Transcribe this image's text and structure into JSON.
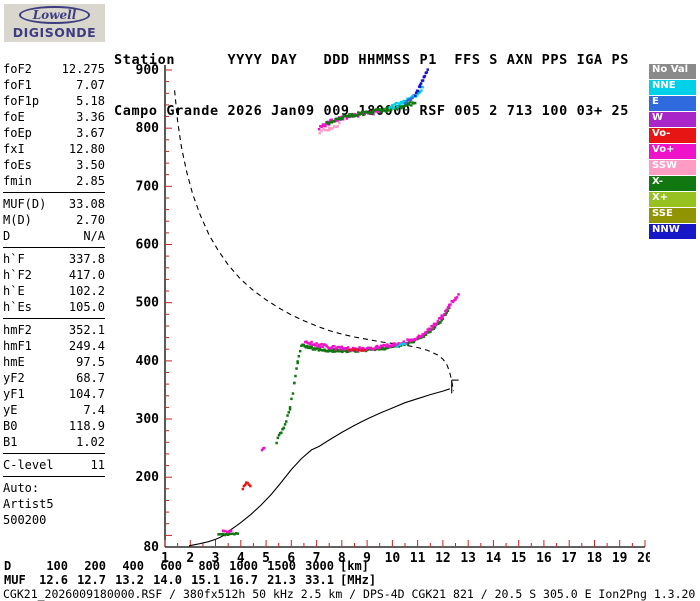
{
  "logo": {
    "top": "Lowell",
    "bottom": "DIGISONDE"
  },
  "header": {
    "line1": "Station      YYYY DAY   DDD HHMMSS P1  FFS S AXN PPS IGA PS",
    "line2": "Campo Grande 2026 Jan09 009 180000 RSF 005 2 713 100 03+ 25"
  },
  "params": [
    {
      "l": "foF2",
      "v": "12.275"
    },
    {
      "l": "foF1",
      "v": "7.07"
    },
    {
      "l": "foF1p",
      "v": "5.18"
    },
    {
      "l": "foE",
      "v": "3.36"
    },
    {
      "l": "foEp",
      "v": "3.67"
    },
    {
      "l": "fxI",
      "v": "12.80"
    },
    {
      "l": "foEs",
      "v": "3.50"
    },
    {
      "l": "fmin",
      "v": "2.85",
      "sep": true
    },
    {
      "l": "MUF(D)",
      "v": "33.08"
    },
    {
      "l": "M(D)",
      "v": "2.70"
    },
    {
      "l": "D",
      "v": "N/A",
      "sep": true
    },
    {
      "l": "h`F",
      "v": "337.8"
    },
    {
      "l": "h`F2",
      "v": "417.0"
    },
    {
      "l": "h`E",
      "v": "102.2"
    },
    {
      "l": "h`Es",
      "v": "105.0",
      "sep": true
    },
    {
      "l": "hmF2",
      "v": "352.1"
    },
    {
      "l": "hmF1",
      "v": "249.4"
    },
    {
      "l": "hmE",
      "v": "97.5"
    },
    {
      "l": "yF2",
      "v": "68.7"
    },
    {
      "l": "yF1",
      "v": "104.7"
    },
    {
      "l": "yE",
      "v": "7.4"
    },
    {
      "l": "B0",
      "v": "118.9"
    },
    {
      "l": "B1",
      "v": "1.02",
      "sep": true
    },
    {
      "l": "C-level",
      "v": "11",
      "sep": true
    },
    {
      "l": "Auto:",
      "v": ""
    },
    {
      "l": "Artist5",
      "v": ""
    },
    {
      "l": "500200",
      "v": ""
    }
  ],
  "legend": [
    {
      "label": "No Val",
      "color": "#8a8a8a"
    },
    {
      "label": "NNE",
      "color": "#00d0e8"
    },
    {
      "label": "E",
      "color": "#2f6bde"
    },
    {
      "label": "W",
      "color": "#a825c8"
    },
    {
      "label": "Vo-",
      "color": "#e81515"
    },
    {
      "label": "Vo+",
      "color": "#ee12c8"
    },
    {
      "label": "SSW",
      "color": "#ff9cc4"
    },
    {
      "label": "X-",
      "color": "#117711"
    },
    {
      "label": "X+",
      "color": "#97c11f"
    },
    {
      "label": "SSE",
      "color": "#8f9400"
    },
    {
      "label": "NNW",
      "color": "#1717c8"
    }
  ],
  "muf_table": {
    "rows": [
      {
        "label": "D",
        "values": [
          "100",
          "200",
          "400",
          "600",
          "800",
          "1000",
          "1500",
          "3000"
        ],
        "unit": "[km]"
      },
      {
        "label": "MUF",
        "values": [
          "12.6",
          "12.7",
          "13.2",
          "14.0",
          "15.1",
          "16.7",
          "21.3",
          "33.1"
        ],
        "unit": "[MHz]"
      }
    ]
  },
  "status_line": "CGK21_2026009180000.RSF / 380fx512h 50 kHz 2.5 km / DPS-4D CGK21 821 / 20.5 S 305.0 E Ion2Png 1.3.20",
  "chart_data": {
    "type": "scatter",
    "title": "Digisonde ionogram, Campo Grande, 2026 Jan09 009 180000",
    "x_axis": {
      "min": 1,
      "max": 20,
      "ticks": [
        1,
        2,
        3,
        4,
        5,
        6,
        7,
        8,
        9,
        10,
        11,
        12,
        13,
        14,
        15,
        16,
        17,
        18,
        19,
        20
      ]
    },
    "y_axis": {
      "min": 80,
      "max": 900,
      "tick_labels": [
        900,
        800,
        700,
        600,
        500,
        400,
        300,
        200,
        80
      ]
    },
    "tick_color": "#cc2222",
    "palette": {
      "xm": "#117711",
      "xp": "#97c11f",
      "vop": "#ee12c8",
      "vom": "#e81515",
      "ssw": "#ff9cc4",
      "nne": "#00d0e8",
      "nnw": "#1717c8",
      "e": "#2f6bde",
      "w": "#a825c8",
      "noval": "#8a8a8a"
    },
    "curves": [
      {
        "name": "muf-transmission-curve",
        "style": "dashed",
        "points": [
          [
            1.38,
            865
          ],
          [
            1.5,
            812
          ],
          [
            1.65,
            768
          ],
          [
            1.85,
            726
          ],
          [
            2.1,
            686
          ],
          [
            2.4,
            650
          ],
          [
            2.75,
            616
          ],
          [
            3.1,
            590
          ],
          [
            3.5,
            565
          ],
          [
            4.0,
            540
          ],
          [
            4.5,
            521
          ],
          [
            5.0,
            505
          ],
          [
            5.5,
            491
          ],
          [
            6.0,
            479
          ],
          [
            6.5,
            469
          ],
          [
            7.0,
            460
          ],
          [
            7.5,
            452
          ],
          [
            8.0,
            446
          ],
          [
            8.5,
            441
          ],
          [
            9.0,
            437
          ],
          [
            9.5,
            433
          ],
          [
            10.0,
            430
          ],
          [
            10.5,
            427
          ],
          [
            11.0,
            423
          ],
          [
            11.4,
            418
          ],
          [
            11.8,
            410
          ],
          [
            12.0,
            403
          ],
          [
            12.15,
            394
          ],
          [
            12.25,
            383
          ],
          [
            12.33,
            370
          ],
          [
            12.38,
            358
          ],
          [
            12.42,
            348
          ]
        ]
      },
      {
        "name": "true-height-profile",
        "style": "solid",
        "points": [
          [
            1.95,
            82
          ],
          [
            2.3,
            85
          ],
          [
            2.7,
            89
          ],
          [
            3.0,
            93
          ],
          [
            3.2,
            97
          ],
          [
            3.36,
            101
          ],
          [
            3.5,
            107
          ],
          [
            3.75,
            114
          ],
          [
            4.0,
            122
          ],
          [
            4.4,
            136
          ],
          [
            4.8,
            152
          ],
          [
            5.2,
            170
          ],
          [
            5.6,
            191
          ],
          [
            6.0,
            213
          ],
          [
            6.4,
            232
          ],
          [
            6.8,
            247
          ],
          [
            7.1,
            253
          ],
          [
            7.5,
            264
          ],
          [
            8.0,
            277
          ],
          [
            8.5,
            289
          ],
          [
            9.0,
            300
          ],
          [
            9.5,
            310
          ],
          [
            10.0,
            319
          ],
          [
            10.5,
            328
          ],
          [
            11.0,
            335
          ],
          [
            11.5,
            342
          ],
          [
            12.0,
            348
          ],
          [
            12.275,
            352
          ]
        ]
      }
    ],
    "markers": [
      {
        "name": "profile-peak-marker",
        "lines": [
          [
            12.35,
            344,
            12.35,
            367
          ],
          [
            12.35,
            367,
            12.62,
            367
          ]
        ]
      }
    ],
    "traces": [
      {
        "name": "E-region-o",
        "color": "xm",
        "step": 0.06,
        "jitter": 1.2,
        "size": 2.5,
        "points": [
          [
            3.12,
            101
          ],
          [
            3.5,
            102
          ],
          [
            3.88,
            103
          ]
        ]
      },
      {
        "name": "E-region-x",
        "color": "vop",
        "step": 0.09,
        "jitter": 1.2,
        "size": 2.5,
        "points": [
          [
            3.3,
            107
          ],
          [
            3.62,
            107
          ]
        ]
      },
      {
        "name": "Es-red-cluster",
        "color": "vom",
        "step": 0.05,
        "jitter": 3.5,
        "size": 2.5,
        "points": [
          [
            4.08,
            180
          ],
          [
            4.22,
            191
          ],
          [
            4.38,
            184
          ]
        ]
      },
      {
        "name": "F-low-pink",
        "color": "vop",
        "step": 0.05,
        "jitter": 1.5,
        "size": 2.5,
        "points": [
          [
            4.84,
            247
          ],
          [
            4.93,
            250
          ]
        ]
      },
      {
        "name": "F1-ledge-green",
        "color": "xm",
        "step": 0.05,
        "jitter": 3.5,
        "size": 2.5,
        "points": [
          [
            5.42,
            262
          ],
          [
            5.7,
            283
          ],
          [
            5.95,
            318
          ],
          [
            6.12,
            360
          ],
          [
            6.25,
            398
          ],
          [
            6.35,
            418
          ]
        ]
      },
      {
        "name": "F-trace-o",
        "color": "xm",
        "step": 0.045,
        "jitter": 2.2,
        "size": 2.5,
        "points": [
          [
            6.4,
            427
          ],
          [
            6.9,
            421
          ],
          [
            7.5,
            418
          ],
          [
            8.2,
            417
          ],
          [
            9.0,
            419
          ],
          [
            9.7,
            422
          ],
          [
            10.3,
            427
          ],
          [
            10.8,
            433
          ],
          [
            11.2,
            442
          ],
          [
            11.6,
            455
          ],
          [
            11.9,
            468
          ],
          [
            12.1,
            480
          ],
          [
            12.25,
            492
          ]
        ]
      },
      {
        "name": "F-trace-x",
        "color": "vop",
        "step": 0.05,
        "jitter": 2.8,
        "size": 2.5,
        "points": [
          [
            6.55,
            433
          ],
          [
            7.1,
            427
          ],
          [
            7.8,
            422
          ],
          [
            8.6,
            420
          ],
          [
            9.4,
            423
          ],
          [
            10.1,
            428
          ],
          [
            10.7,
            435
          ],
          [
            11.2,
            445
          ],
          [
            11.6,
            459
          ],
          [
            11.95,
            475
          ],
          [
            12.25,
            495
          ],
          [
            12.5,
            507
          ],
          [
            12.62,
            514
          ]
        ]
      },
      {
        "name": "F-trace-red-bits",
        "color": "vom",
        "step": 0.12,
        "jitter": 2,
        "size": 2.5,
        "points": [
          [
            8.3,
            418
          ],
          [
            8.9,
            419
          ]
        ]
      },
      {
        "name": "hop2-x",
        "color": "vop",
        "step": 0.05,
        "jitter": 3.5,
        "size": 2.5,
        "points": [
          [
            7.1,
            800
          ],
          [
            7.35,
            806
          ],
          [
            7.6,
            812
          ],
          [
            8.0,
            818
          ],
          [
            8.5,
            822
          ],
          [
            9.0,
            825
          ],
          [
            9.5,
            828
          ]
        ]
      },
      {
        "name": "hop2-o",
        "color": "xm",
        "step": 0.05,
        "jitter": 3,
        "size": 2.5,
        "points": [
          [
            7.4,
            810
          ],
          [
            8.0,
            818
          ],
          [
            8.6,
            824
          ],
          [
            9.2,
            828
          ],
          [
            9.8,
            832
          ],
          [
            10.4,
            838
          ],
          [
            10.9,
            844
          ]
        ]
      },
      {
        "name": "hop2-ssw",
        "color": "ssw",
        "step": 0.07,
        "jitter": 3,
        "size": 2.5,
        "points": [
          [
            7.12,
            793
          ],
          [
            7.5,
            799
          ],
          [
            7.9,
            806
          ]
        ]
      },
      {
        "name": "hop2-nne",
        "color": "nne",
        "step": 0.05,
        "jitter": 4,
        "size": 2.5,
        "points": [
          [
            9.9,
            836
          ],
          [
            10.3,
            842
          ],
          [
            10.7,
            850
          ],
          [
            11.0,
            860
          ],
          [
            11.2,
            870
          ]
        ]
      },
      {
        "name": "hop2-nnw",
        "color": "nnw",
        "step": 0.04,
        "jitter": 3,
        "size": 2.5,
        "points": [
          [
            10.9,
            858
          ],
          [
            11.1,
            872
          ],
          [
            11.25,
            886
          ],
          [
            11.4,
            898
          ]
        ]
      },
      {
        "name": "hop2-e",
        "color": "e",
        "step": 0.06,
        "jitter": 3,
        "size": 2.5,
        "points": [
          [
            10.5,
            845
          ],
          [
            10.8,
            853
          ]
        ]
      },
      {
        "name": "F-trace-nne-bits",
        "color": "nne",
        "step": 0.1,
        "jitter": 2,
        "size": 2.5,
        "points": [
          [
            10.2,
            426
          ],
          [
            10.5,
            428
          ]
        ]
      }
    ]
  }
}
